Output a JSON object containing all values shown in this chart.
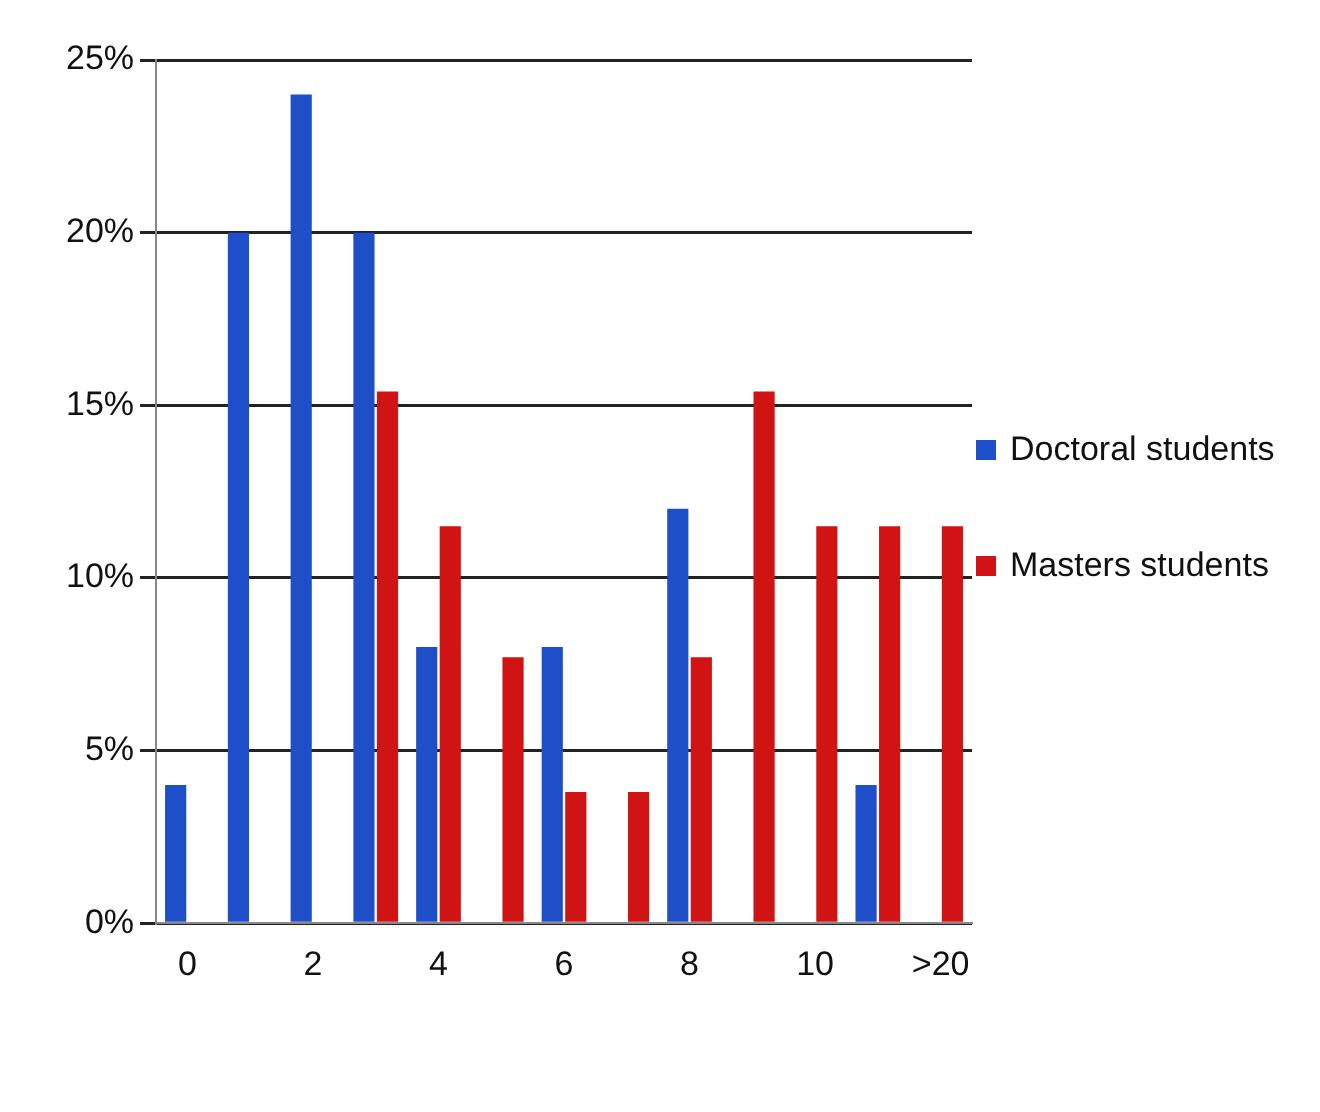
{
  "chart_data": {
    "type": "bar",
    "categories": [
      "0",
      null,
      "2",
      null,
      "4",
      null,
      "6",
      null,
      "8",
      null,
      "10",
      null,
      ">20"
    ],
    "series": [
      {
        "name": "Doctoral students",
        "color": "#1f4fc8",
        "values": [
          4,
          20,
          24,
          20,
          8,
          0,
          8,
          0,
          12,
          0,
          0,
          4,
          0
        ]
      },
      {
        "name": "Masters students",
        "color": "#d01414",
        "values": [
          0,
          0,
          0,
          15.4,
          11.5,
          7.7,
          3.8,
          3.8,
          7.7,
          15.4,
          11.5,
          11.5,
          11.5
        ]
      }
    ],
    "ylim": [
      0,
      25
    ],
    "yticks": [
      {
        "value": 0,
        "label": "0%"
      },
      {
        "value": 5,
        "label": "5%"
      },
      {
        "value": 10,
        "label": "10%"
      },
      {
        "value": 15,
        "label": "15%"
      },
      {
        "value": 20,
        "label": "20%"
      },
      {
        "value": 25,
        "label": "25%"
      }
    ],
    "grid": "y",
    "legend": "right"
  }
}
